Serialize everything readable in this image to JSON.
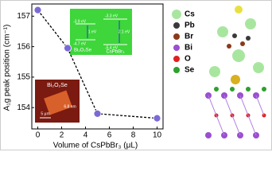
{
  "chart_data": {
    "type": "line",
    "x_label": "Volume of CsPbBr₃ (μL)",
    "y_label": "A₁g peak position (cm⁻¹)",
    "x": [
      0,
      2.5,
      5,
      10
    ],
    "series": [
      {
        "name": "A₁g",
        "color": "#7b6ad6",
        "values": [
          157.2,
          155.95,
          153.8,
          153.65
        ]
      }
    ],
    "xlim": [
      -0.5,
      10.5
    ],
    "xticks": [
      0,
      2,
      4,
      6,
      8,
      10
    ],
    "ylim": [
      153.3,
      157.4
    ],
    "yticks": [
      154,
      155,
      156,
      157
    ],
    "band_inset": {
      "labels": [
        "-3.9 eV",
        "-4.7 eV",
        "-3.3 eV",
        "-5.4 eV",
        "1 eV",
        "2.1 eV",
        "Bi₂O₂Se",
        "CsPbBr₃"
      ]
    },
    "afm_inset": {
      "labels": [
        "Bi₂O₂Se",
        "6.8 nm",
        "5 μm"
      ]
    },
    "atom_legend": [
      {
        "name": "Cs",
        "color": "#a8e6a0"
      },
      {
        "name": "Pb",
        "color": "#3a3a3a"
      },
      {
        "name": "Br",
        "color": "#8b3a1a"
      },
      {
        "name": "Bi",
        "color": "#9b4fd0"
      },
      {
        "name": "O",
        "color": "#e02020"
      },
      {
        "name": "Se",
        "color": "#2ea02e"
      }
    ]
  }
}
